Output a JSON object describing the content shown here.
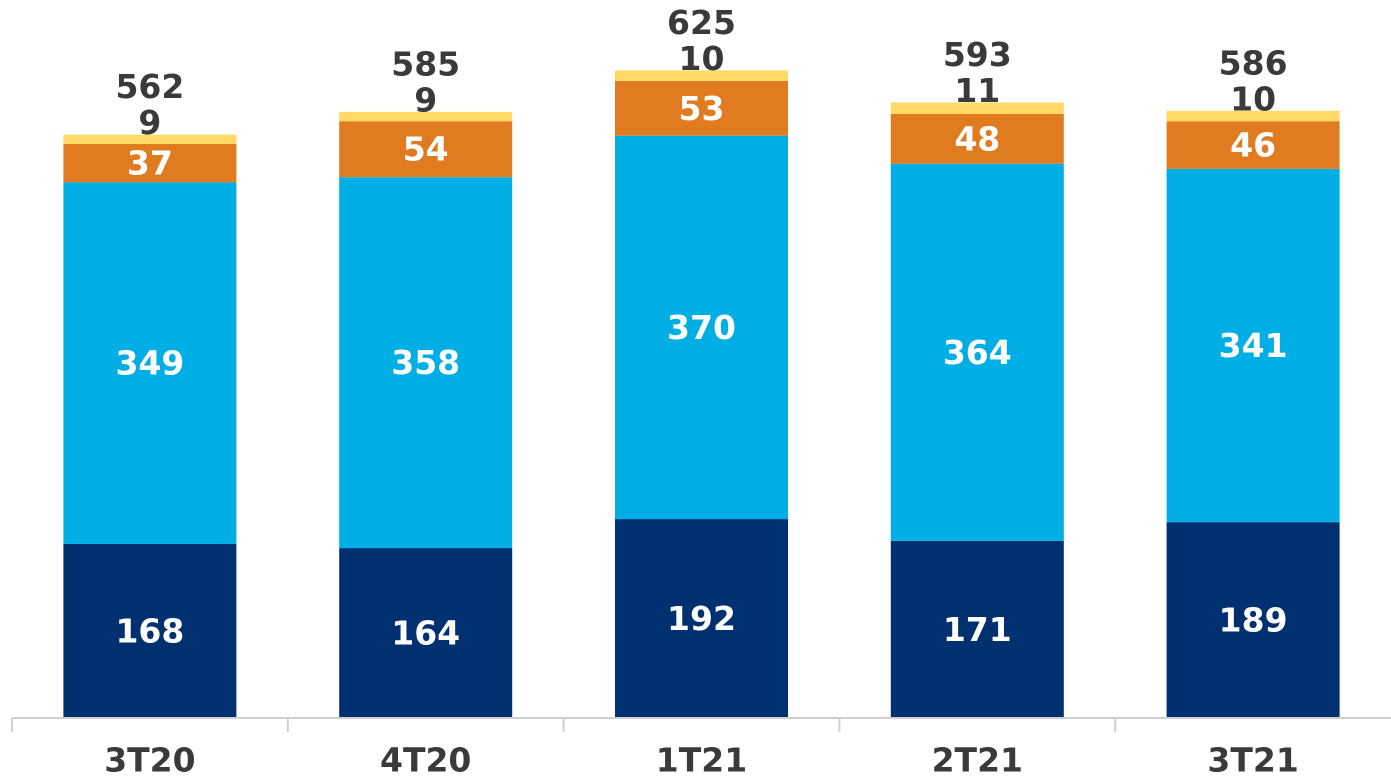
{
  "chart_data": {
    "type": "stacked_bar",
    "categories": [
      "3T20",
      "4T20",
      "1T21",
      "2T21",
      "3T21"
    ],
    "series": [
      {
        "color": "#003070",
        "label_color": "#ffffff",
        "values": [
          168,
          164,
          192,
          171,
          189
        ]
      },
      {
        "color": "#00aee6",
        "label_color": "#ffffff",
        "values": [
          349,
          358,
          370,
          364,
          341
        ]
      },
      {
        "color": "#e07b20",
        "label_color": "#ffffff",
        "values": [
          37,
          54,
          53,
          48,
          46
        ]
      },
      {
        "color": "#ffd966",
        "label_color": "#3a3a3a",
        "values": [
          9,
          9,
          10,
          11,
          10
        ]
      }
    ],
    "totals": [
      562,
      585,
      625,
      593,
      586
    ],
    "ylim": [
      0,
      693
    ]
  }
}
